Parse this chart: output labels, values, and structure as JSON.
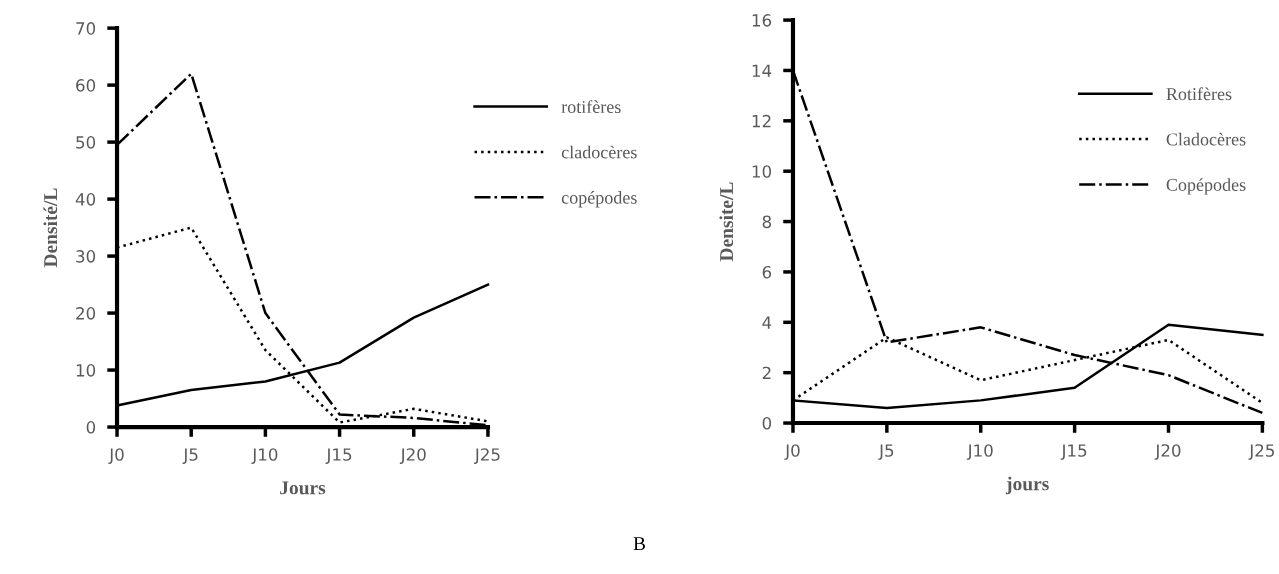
{
  "chart_data": [
    {
      "type": "line",
      "xlabel": "Jours",
      "ylabel": "Densité/L",
      "categories": [
        "J0",
        "J5",
        "J10",
        "J15",
        "J20",
        "J25"
      ],
      "ylim": [
        0,
        70
      ],
      "yticks": [
        0,
        10,
        20,
        30,
        40,
        50,
        60,
        70
      ],
      "grid": false,
      "legend": "top right",
      "marker": "none",
      "series": [
        {
          "name": "rotifères",
          "color": "#000000",
          "line_style": "solid",
          "values": [
            3.8,
            6.5,
            8,
            11.3,
            19.2,
            25
          ]
        },
        {
          "name": "cladocères",
          "color": "#000000",
          "line_style": "dotted",
          "values": [
            31.5,
            35,
            13.5,
            0.8,
            3.2,
            1
          ]
        },
        {
          "name": "copépodes",
          "color": "#000000",
          "line_style": "dashdot",
          "values": [
            49.5,
            62,
            20,
            2.2,
            1.6,
            0.3
          ]
        }
      ]
    },
    {
      "type": "line",
      "xlabel": "jours",
      "ylabel": "Densite/L",
      "annotations": [
        "B"
      ],
      "categories": [
        "J0",
        "J5",
        "J10",
        "J15",
        "J20",
        "J25"
      ],
      "ylim": [
        0,
        16
      ],
      "yticks": [
        0,
        2,
        4,
        6,
        8,
        10,
        12,
        14,
        16
      ],
      "grid": false,
      "legend": "right",
      "marker": "none",
      "series": [
        {
          "name": "Rotifères",
          "color": "#000000",
          "line_style": "solid",
          "values": [
            0.9,
            0.6,
            0.9,
            1.4,
            3.9,
            3.5
          ]
        },
        {
          "name": "Cladocères",
          "color": "#000000",
          "line_style": "dotted",
          "values": [
            0.9,
            3.4,
            1.7,
            2.5,
            3.3,
            0.8
          ]
        },
        {
          "name": "Copépodes",
          "color": "#000000",
          "line_style": "dashdot",
          "values": [
            14,
            3.2,
            3.8,
            2.7,
            1.9,
            0.4
          ]
        }
      ]
    }
  ]
}
